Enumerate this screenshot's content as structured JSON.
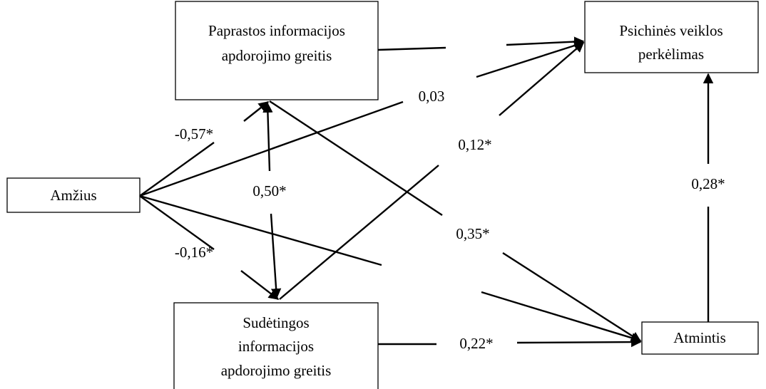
{
  "nodes": [
    {
      "lines": [
        "Paprastos informacijos",
        "apdorojimo greitis"
      ]
    },
    {
      "lines": [
        "Psichinės veiklos",
        "perkėlimas"
      ]
    },
    {
      "lines": [
        "Amžius"
      ]
    },
    {
      "lines": [
        "Sudėtingos",
        "informacijos",
        "apdorojimo greitis"
      ]
    },
    {
      "lines": [
        "Atmintis"
      ]
    }
  ],
  "edges": [
    {
      "label": "-0,57*"
    },
    {
      "label": "0,03"
    },
    {
      "label": "-0,16*"
    },
    {
      "label": "0,50*"
    },
    {
      "label": "0,35*"
    },
    {
      "label": "0,12*"
    },
    {
      "label": "0,22*"
    },
    {
      "label": "0,28*"
    }
  ]
}
